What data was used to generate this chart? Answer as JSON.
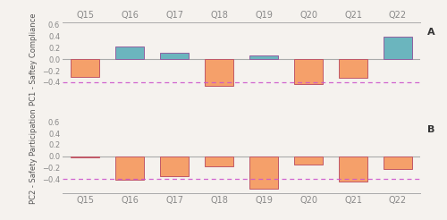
{
  "categories": [
    "Q15",
    "Q16",
    "Q17",
    "Q18",
    "Q19",
    "Q20",
    "Q21",
    "Q22"
  ],
  "pc1_values": [
    -0.3,
    0.23,
    0.12,
    -0.47,
    0.07,
    -0.43,
    -0.33,
    0.4
  ],
  "pc2_values": [
    -0.02,
    -0.41,
    -0.35,
    -0.17,
    -0.57,
    -0.15,
    -0.44,
    -0.22
  ],
  "positive_color": "#6bb5be",
  "negative_color": "#f5a06a",
  "bar_edgecolor_positive": "#9060a0",
  "bar_edgecolor_negative": "#c05868",
  "dashed_line_value": -0.4,
  "dashed_line_color": "#cc55cc",
  "ylim": [
    -0.65,
    0.65
  ],
  "yticks": [
    -0.4,
    -0.2,
    0.0,
    0.2,
    0.4,
    0.6
  ],
  "pc1_ylabel": "PC1 - Saftey Compliance",
  "pc2_ylabel": "PC2 - Safety Participation",
  "label_A": "A",
  "label_B": "B",
  "background_color": "#f5f2ee",
  "spine_color": "#aaaaaa",
  "bar_width": 0.65,
  "tick_color": "#888888"
}
